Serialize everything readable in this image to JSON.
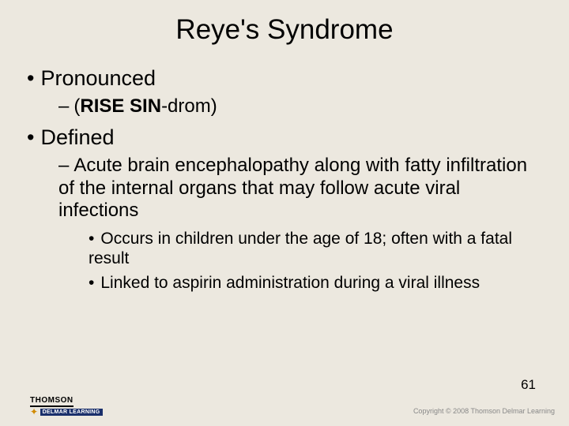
{
  "slide": {
    "title": "Reye's Syndrome",
    "items": [
      {
        "text": "Pronounced",
        "sub": [
          {
            "dash": "–",
            "prefix": "(",
            "bold": "RISE  SIN",
            "rest": "-drom)"
          }
        ]
      },
      {
        "text": "Defined",
        "sub": [
          {
            "dash": "–",
            "text": "Acute brain encephalopathy along with fatty infiltration of the internal organs that may follow acute viral infections",
            "sub": [
              {
                "text": "Occurs in children under the age of 18; often with a fatal result"
              },
              {
                "text": "Linked to aspirin administration during a viral illness"
              }
            ]
          }
        ]
      }
    ]
  },
  "footer": {
    "logo_top": "THOMSON",
    "logo_bottom": "DELMAR LEARNING",
    "copyright": "Copyright © 2008 Thomson Delmar Learning",
    "page": "61"
  },
  "style": {
    "background": "#ece8df",
    "title_fontsize": 35,
    "lvl1_fontsize": 27,
    "lvl2_fontsize": 24,
    "lvl3_fontsize": 21
  }
}
